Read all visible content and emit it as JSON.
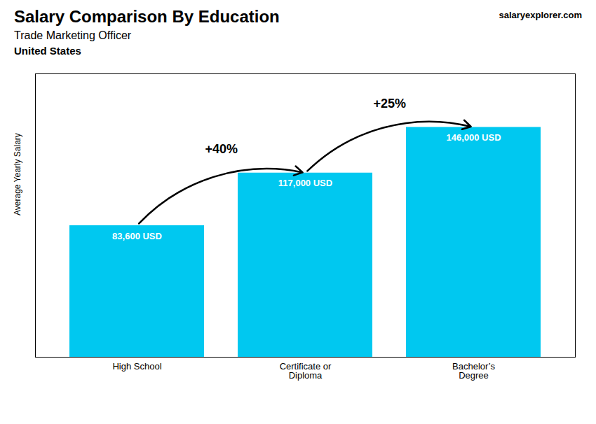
{
  "chart_data": {
    "type": "bar",
    "title": "Salary Comparison By Education",
    "subtitle": "Trade Marketing Officer",
    "ylabel": "Average Yearly Salary",
    "categories": [
      "High School",
      "Certificate or\nDiploma",
      "Bachelor’s\nDegree"
    ],
    "values": [
      83600,
      117000,
      146000
    ],
    "value_labels": [
      "83,600 USD",
      "117,000 USD",
      "146,000 USD"
    ],
    "data_labels": true,
    "color": "#00c8f0",
    "ylim": [
      0,
      180000
    ],
    "grid": false,
    "tick_labels": "x",
    "annotations": [
      {
        "text": "United States"
      },
      {
        "text": "salaryexplorer.com"
      },
      {
        "text": "+40%",
        "from": "High School",
        "to": "Certificate or\nDiploma"
      },
      {
        "text": "+25%",
        "from": "Certificate or\nDiploma",
        "to": "Bachelor’s\nDegree"
      }
    ]
  }
}
